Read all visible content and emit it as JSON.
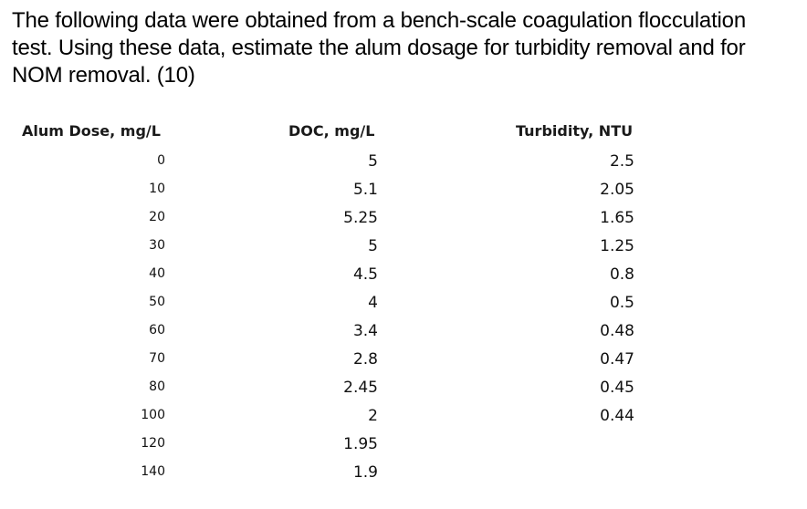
{
  "question": {
    "lines": [
      "The following data were obtained from a bench-scale coagulation flocculation",
      "test. Using these data, estimate the alum dosage for turbidity removal and for",
      "NOM removal.  (10)"
    ]
  },
  "table": {
    "headers": {
      "dose": "Alum Dose, mg/L",
      "doc": "DOC, mg/L",
      "turbidity": "Turbidity, NTU"
    },
    "rows": [
      {
        "dose": "0",
        "doc": "5",
        "turbidity": "2.5"
      },
      {
        "dose": "10",
        "doc": "5.1",
        "turbidity": "2.05"
      },
      {
        "dose": "20",
        "doc": "5.25",
        "turbidity": "1.65"
      },
      {
        "dose": "30",
        "doc": "5",
        "turbidity": "1.25"
      },
      {
        "dose": "40",
        "doc": "4.5",
        "turbidity": "0.8"
      },
      {
        "dose": "50",
        "doc": "4",
        "turbidity": "0.5"
      },
      {
        "dose": "60",
        "doc": "3.4",
        "turbidity": "0.48"
      },
      {
        "dose": "70",
        "doc": "2.8",
        "turbidity": "0.47"
      },
      {
        "dose": "80",
        "doc": "2.45",
        "turbidity": "0.45"
      },
      {
        "dose": "100",
        "doc": "2",
        "turbidity": "0.44"
      },
      {
        "dose": "120",
        "doc": "1.95",
        "turbidity": ""
      },
      {
        "dose": "140",
        "doc": "1.9",
        "turbidity": ""
      }
    ]
  }
}
